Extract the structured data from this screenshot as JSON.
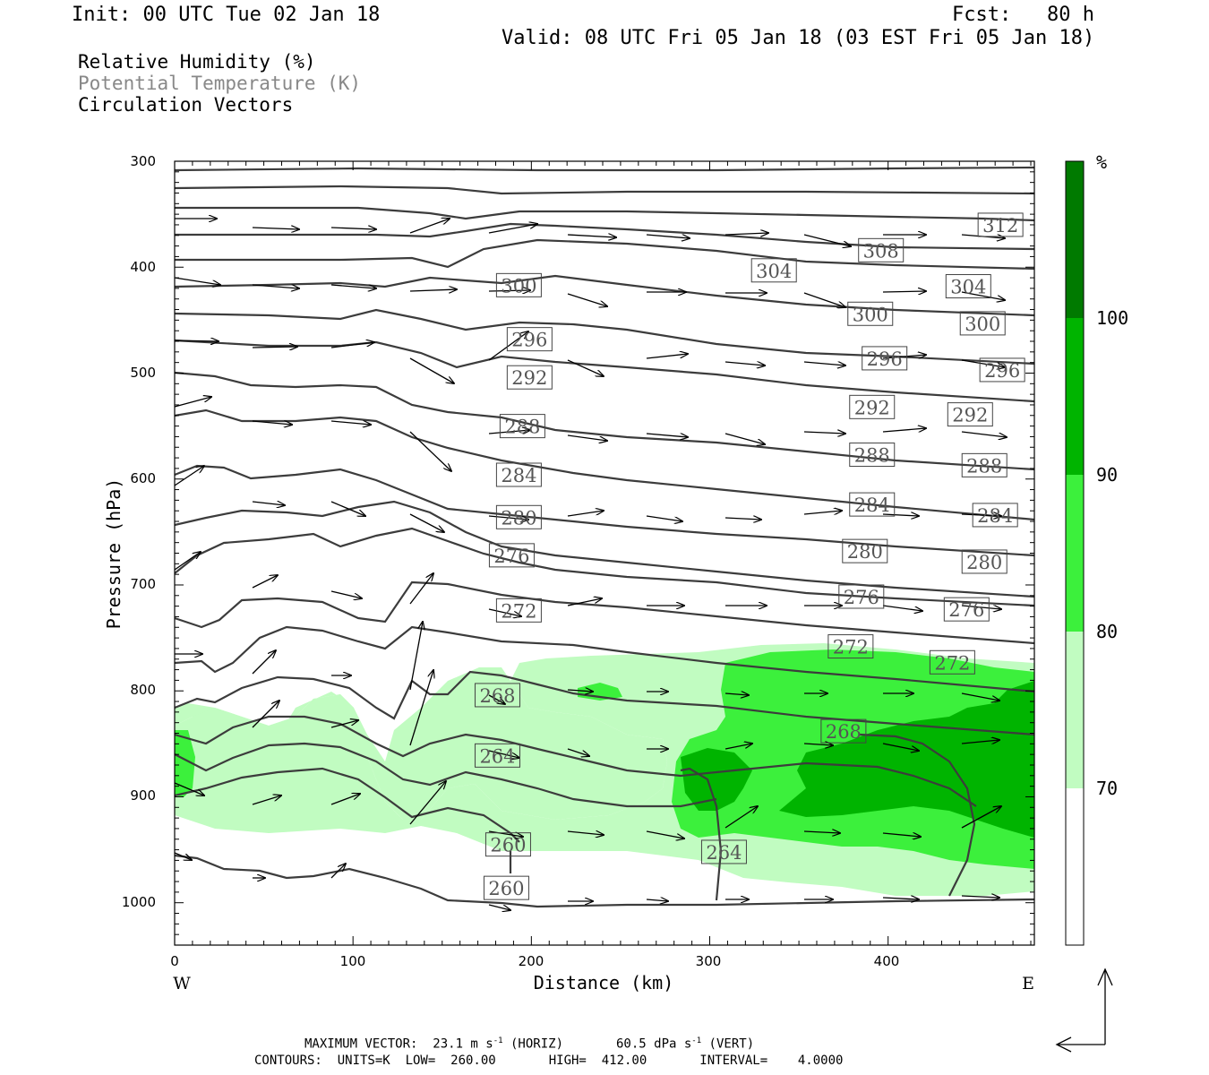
{
  "header": {
    "init": "Init: 00 UTC Tue 02 Jan 18",
    "fcst": "Fcst:   80 h",
    "valid": "Valid: 08 UTC Fri 05 Jan 18 (03 EST Fri 05 Jan 18)"
  },
  "legend": {
    "rh": "Relative Humidity (%)",
    "theta": "Potential Temperature (K)",
    "vectors": "Circulation Vectors"
  },
  "colors": {
    "rh_70_80": "#c1fcc1",
    "rh_80_90": "#3cf03c",
    "rh_90_100": "#00b400",
    "rh_100": "#007a00",
    "contour": "#3c3c3c",
    "label_faint": "#777777"
  },
  "chart_data": {
    "type": "cross-section",
    "xlabel": "Distance (km)",
    "ylabel": "Pressure (hPa)",
    "xlim": [
      0,
      482
    ],
    "ylim": [
      1040,
      300
    ],
    "x_ticks": [
      "0",
      "100",
      "200",
      "300",
      "400"
    ],
    "y_ticks": [
      "300",
      "400",
      "500",
      "600",
      "700",
      "800",
      "900",
      "1000"
    ],
    "west_label": "W",
    "east_label": "E",
    "colorbar": {
      "unit": "%",
      "levels": [
        "70",
        "80",
        "90",
        "100"
      ]
    },
    "theta_labels": [
      {
        "text": "312",
        "x": 463,
        "p": 360
      },
      {
        "text": "308",
        "x": 396,
        "p": 384
      },
      {
        "text": "304",
        "x": 336,
        "p": 403
      },
      {
        "text": "304",
        "x": 445,
        "p": 418
      },
      {
        "text": "300",
        "x": 193,
        "p": 417
      },
      {
        "text": "300",
        "x": 390,
        "p": 444
      },
      {
        "text": "300",
        "x": 453,
        "p": 453
      },
      {
        "text": "296",
        "x": 199,
        "p": 468
      },
      {
        "text": "296",
        "x": 398,
        "p": 486
      },
      {
        "text": "296",
        "x": 464,
        "p": 497
      },
      {
        "text": "292",
        "x": 199,
        "p": 504
      },
      {
        "text": "292",
        "x": 391,
        "p": 532
      },
      {
        "text": "292",
        "x": 446,
        "p": 539
      },
      {
        "text": "288",
        "x": 195,
        "p": 550
      },
      {
        "text": "288",
        "x": 391,
        "p": 577
      },
      {
        "text": "288",
        "x": 454,
        "p": 587
      },
      {
        "text": "284",
        "x": 193,
        "p": 596
      },
      {
        "text": "284",
        "x": 391,
        "p": 624
      },
      {
        "text": "284",
        "x": 460,
        "p": 634
      },
      {
        "text": "280",
        "x": 193,
        "p": 636
      },
      {
        "text": "280",
        "x": 387,
        "p": 668
      },
      {
        "text": "280",
        "x": 454,
        "p": 678
      },
      {
        "text": "276",
        "x": 189,
        "p": 672
      },
      {
        "text": "276",
        "x": 385,
        "p": 711
      },
      {
        "text": "276",
        "x": 444,
        "p": 723
      },
      {
        "text": "272",
        "x": 193,
        "p": 724
      },
      {
        "text": "272",
        "x": 379,
        "p": 758
      },
      {
        "text": "272",
        "x": 436,
        "p": 773
      },
      {
        "text": "268",
        "x": 181,
        "p": 804
      },
      {
        "text": "268",
        "x": 375,
        "p": 838
      },
      {
        "text": "264",
        "x": 181,
        "p": 861
      },
      {
        "text": "264",
        "x": 308,
        "p": 952
      },
      {
        "text": "260",
        "x": 187,
        "p": 945
      },
      {
        "text": "260",
        "x": 186,
        "p": 986
      }
    ],
    "units": "K",
    "low": "260.00",
    "high": "412.00",
    "interval": "4.0000",
    "max_vector_horiz": "23.1",
    "max_vector_vert": "60.5"
  },
  "footer": {
    "line1_a": "MAXIMUM VECTOR:  23.1 m s",
    "line1_b": " (HORIZ)       60.5 dPa s",
    "line1_c": " (VERT)",
    "sup": "-1",
    "line2": "CONTOURS:  UNITS=K  LOW=  260.00       HIGH=  412.00       INTERVAL=    4.0000"
  }
}
